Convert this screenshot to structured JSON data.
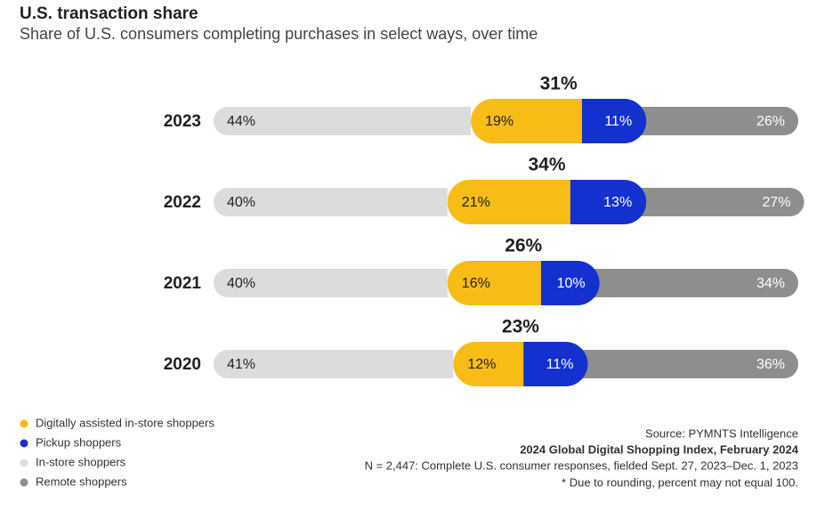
{
  "chart_data": {
    "type": "pill-stacked-bar",
    "title": "U.S. transaction share",
    "subtitle": "Share of U.S. consumers completing purchases in select ways, over time",
    "categories": [
      "2023",
      "2022",
      "2021",
      "2020"
    ],
    "series": [
      {
        "name": "Digitally assisted in-store shoppers",
        "color": "#f8bc16",
        "values": [
          19,
          21,
          16,
          12
        ],
        "value_labels": [
          "19%",
          "21%",
          "16%",
          "12%"
        ]
      },
      {
        "name": "Pickup shoppers",
        "color": "#1431cf",
        "values": [
          11,
          13,
          10,
          11
        ],
        "value_labels": [
          "11%",
          "13%",
          "10%",
          "11%"
        ]
      },
      {
        "name": "In-store shoppers",
        "color": "#dcdcdc",
        "values": [
          44,
          40,
          40,
          41
        ],
        "value_labels": [
          "44%",
          "40%",
          "40%",
          "41%"
        ]
      },
      {
        "name": "Remote shoppers",
        "color": "#8e8e8e",
        "values": [
          26,
          27,
          34,
          36
        ],
        "value_labels": [
          "26%",
          "27%",
          "34%",
          "36%"
        ]
      }
    ],
    "totals": {
      "values": [
        31,
        34,
        26,
        23
      ],
      "value_labels": [
        "31%",
        "34%",
        "26%",
        "23%"
      ]
    },
    "xlim": [
      0,
      100
    ],
    "notes": [
      "Source: PYMNTS Intelligence",
      "2024 Global Digital Shopping Index, February 2024",
      "N = 2,447: Complete U.S. consumer responses, fielded Sept. 27, 2023–Dec. 1, 2023",
      "* Due to rounding, percent may not equal 100."
    ]
  }
}
